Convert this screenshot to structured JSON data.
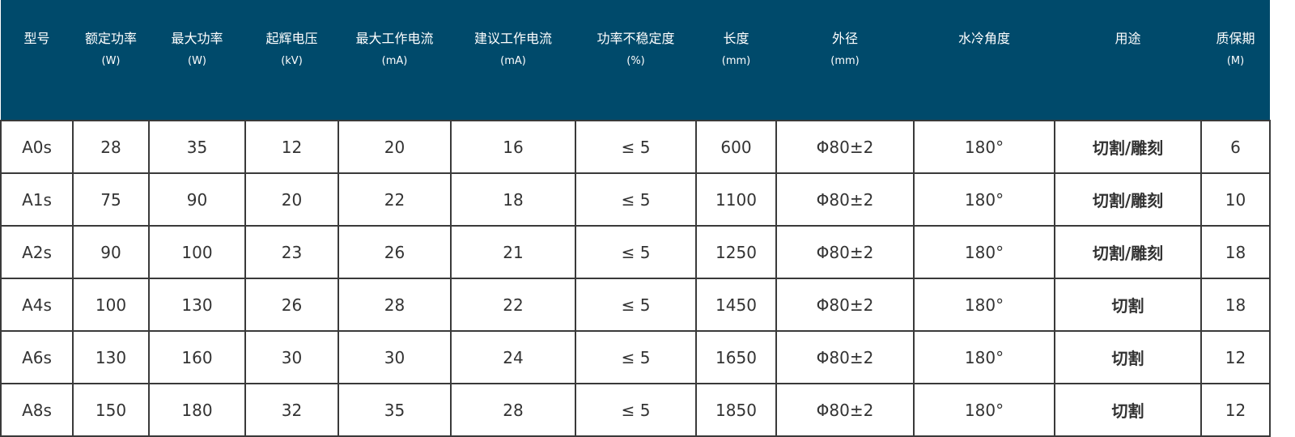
{
  "colors": {
    "header_bg": "#004a6b",
    "header_text": "#ffffff",
    "cell_text": "#333333",
    "border": "#3a3a3a"
  },
  "columns": [
    {
      "label": "型号",
      "unit": ""
    },
    {
      "label": "额定功率",
      "unit": "(W)"
    },
    {
      "label": "最大功率",
      "unit": "(W)"
    },
    {
      "label": "起辉电压",
      "unit": "(kV)"
    },
    {
      "label": "最大工作电流",
      "unit": "(mA)"
    },
    {
      "label": "建议工作电流",
      "unit": "(mA)"
    },
    {
      "label": "功率不稳定度",
      "unit": "(%)"
    },
    {
      "label": "长度",
      "unit": "(mm)"
    },
    {
      "label": "外径",
      "unit": "(mm)"
    },
    {
      "label": "水冷角度",
      "unit": ""
    },
    {
      "label": "用途",
      "unit": ""
    },
    {
      "label": "质保期",
      "unit": "(M)"
    }
  ],
  "rows": [
    [
      "A0s",
      "28",
      "35",
      "12",
      "20",
      "16",
      "≤ 5",
      "600",
      "Φ80±2",
      "180°",
      "切割/雕刻",
      "6"
    ],
    [
      "A1s",
      "75",
      "90",
      "20",
      "22",
      "18",
      "≤ 5",
      "1100",
      "Φ80±2",
      "180°",
      "切割/雕刻",
      "10"
    ],
    [
      "A2s",
      "90",
      "100",
      "23",
      "26",
      "21",
      "≤ 5",
      "1250",
      "Φ80±2",
      "180°",
      "切割/雕刻",
      "18"
    ],
    [
      "A4s",
      "100",
      "130",
      "26",
      "28",
      "22",
      "≤ 5",
      "1450",
      "Φ80±2",
      "180°",
      "切割",
      "18"
    ],
    [
      "A6s",
      "130",
      "160",
      "30",
      "30",
      "24",
      "≤ 5",
      "1650",
      "Φ80±2",
      "180°",
      "切割",
      "12"
    ],
    [
      "A8s",
      "150",
      "180",
      "32",
      "35",
      "28",
      "≤ 5",
      "1850",
      "Φ80±2",
      "180°",
      "切割",
      "12"
    ]
  ]
}
